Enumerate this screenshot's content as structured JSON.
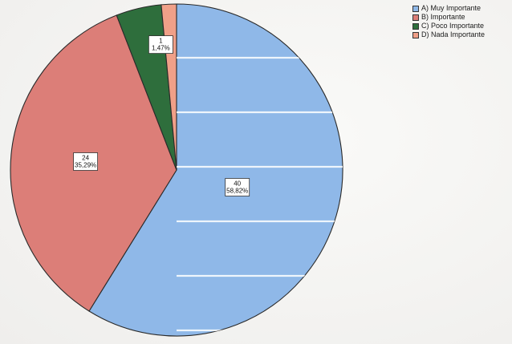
{
  "chart_data": {
    "type": "pie",
    "categories": [
      "A) Muy Importante",
      "B) Importante",
      "C) Poco Importante",
      "D) Nada Importante"
    ],
    "values": [
      40,
      24,
      3,
      1
    ],
    "percent_labels": [
      "58,82%",
      "35,29%",
      "4,41%",
      "1,47%"
    ],
    "data_labels": [
      {
        "count": "40",
        "percent": "58,82%"
      },
      {
        "count": "24",
        "percent": "35,29%"
      },
      {
        "count": "1",
        "percent": "1,47%"
      }
    ],
    "colors": [
      "#8fb8e8",
      "#dc7e78",
      "#2e6e3c",
      "#f0a088"
    ],
    "legend_position": "top-right",
    "start_angle": "12 o'clock, counter-clockwise for A",
    "hatched": true
  },
  "legend": {
    "items": [
      {
        "label": "A) Muy Importante",
        "color": "#8fb8e8"
      },
      {
        "label": "B) Importante",
        "color": "#dc7e78"
      },
      {
        "label": "C) Poco Importante",
        "color": "#2e6e3c"
      },
      {
        "label": "D) Nada Importante",
        "color": "#f0a088"
      }
    ]
  }
}
